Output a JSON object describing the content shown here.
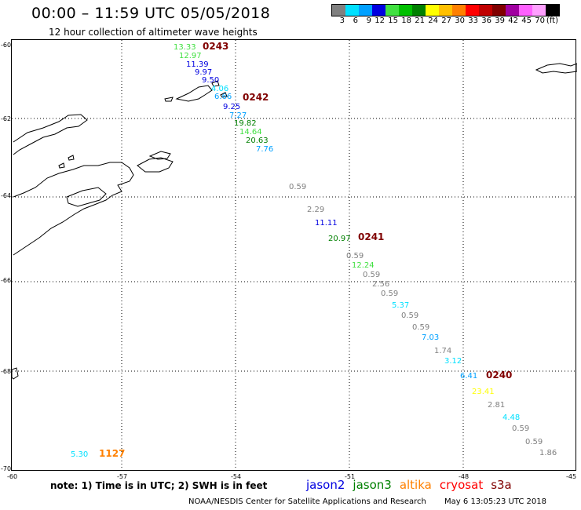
{
  "header": {
    "title": "00:00 – 11:59 UTC 05/05/2018",
    "subtitle": "12 hour collection of altimeter wave heights"
  },
  "legend": {
    "colors": [
      "#808080",
      "#00e0ff",
      "#00a0ff",
      "#0000e0",
      "#40e040",
      "#00c000",
      "#008000",
      "#ffff00",
      "#ffc000",
      "#ff8000",
      "#ff0000",
      "#c00000",
      "#800000",
      "#a000a0",
      "#ff60ff",
      "#ffa0ff",
      "#000000"
    ],
    "labels": [
      "3",
      "6",
      "9",
      "12",
      "15",
      "18",
      "21",
      "24",
      "27",
      "30",
      "33",
      "36",
      "39",
      "42",
      "45",
      "70",
      "(ft)"
    ]
  },
  "axes": {
    "lat_labels": [
      "-60",
      "-62",
      "-64",
      "-66",
      "-68",
      "-70"
    ],
    "lon_labels": [
      "-60",
      "-57",
      "-54",
      "-51",
      "-48",
      "-45"
    ]
  },
  "observations": [
    {
      "v": "13.33",
      "c": "#40e040"
    },
    {
      "v": "12.97",
      "c": "#40e040"
    },
    {
      "v": "11.39",
      "c": "#0000e0"
    },
    {
      "v": "9.97",
      "c": "#0000e0"
    },
    {
      "v": "9.50",
      "c": "#0000e0"
    },
    {
      "v": "4.06",
      "c": "#00e0ff"
    },
    {
      "v": "6.66",
      "c": "#00a0ff"
    },
    {
      "v": "9.25",
      "c": "#0000e0"
    },
    {
      "v": "7.27",
      "c": "#00a0ff"
    },
    {
      "v": "19.82",
      "c": "#008000"
    },
    {
      "v": "14.64",
      "c": "#40e040"
    },
    {
      "v": "20.63",
      "c": "#008000"
    },
    {
      "v": "7.76",
      "c": "#00a0ff"
    },
    {
      "v": "0.59",
      "c": "#808080"
    },
    {
      "v": "2.29",
      "c": "#808080"
    },
    {
      "v": "11.11",
      "c": "#0000e0"
    },
    {
      "v": "20.97",
      "c": "#008000"
    },
    {
      "v": "0.59",
      "c": "#808080"
    },
    {
      "v": "12.24",
      "c": "#40e040"
    },
    {
      "v": "0.59",
      "c": "#808080"
    },
    {
      "v": "2.56",
      "c": "#808080"
    },
    {
      "v": "0.59",
      "c": "#808080"
    },
    {
      "v": "5.37",
      "c": "#00e0ff"
    },
    {
      "v": "0.59",
      "c": "#808080"
    },
    {
      "v": "0.59",
      "c": "#808080"
    },
    {
      "v": "7.03",
      "c": "#00a0ff"
    },
    {
      "v": "1.74",
      "c": "#808080"
    },
    {
      "v": "3.12",
      "c": "#00e0ff"
    },
    {
      "v": "6.41",
      "c": "#00a0ff"
    },
    {
      "v": "23.41",
      "c": "#ffff00"
    },
    {
      "v": "2.81",
      "c": "#808080"
    },
    {
      "v": "4.48",
      "c": "#00e0ff"
    },
    {
      "v": "0.59",
      "c": "#808080"
    },
    {
      "v": "0.59",
      "c": "#808080"
    },
    {
      "v": "1.86",
      "c": "#808080"
    },
    {
      "v": "5.30",
      "c": "#00e0ff"
    }
  ],
  "passes": [
    {
      "label": "0243",
      "c": "#800000"
    },
    {
      "label": "0242",
      "c": "#800000"
    },
    {
      "label": "0241",
      "c": "#800000"
    },
    {
      "label": "0240",
      "c": "#800000"
    },
    {
      "label": "1127",
      "c": "#ff8000"
    }
  ],
  "note": "note:  1) Time is in UTC;  2) SWH is in feet",
  "satellites": [
    {
      "name": "jason2",
      "c": "#0000e0"
    },
    {
      "name": "jason3",
      "c": "#008000"
    },
    {
      "name": "altika",
      "c": "#ff8000"
    },
    {
      "name": "cryosat",
      "c": "#ff0000"
    },
    {
      "name": "s3a",
      "c": "#800000"
    }
  ],
  "footer": {
    "credit": "NOAA/NESDIS Center for Satellite Applications and Research",
    "timestamp": "May  6 13:05:23 UTC 2018"
  }
}
